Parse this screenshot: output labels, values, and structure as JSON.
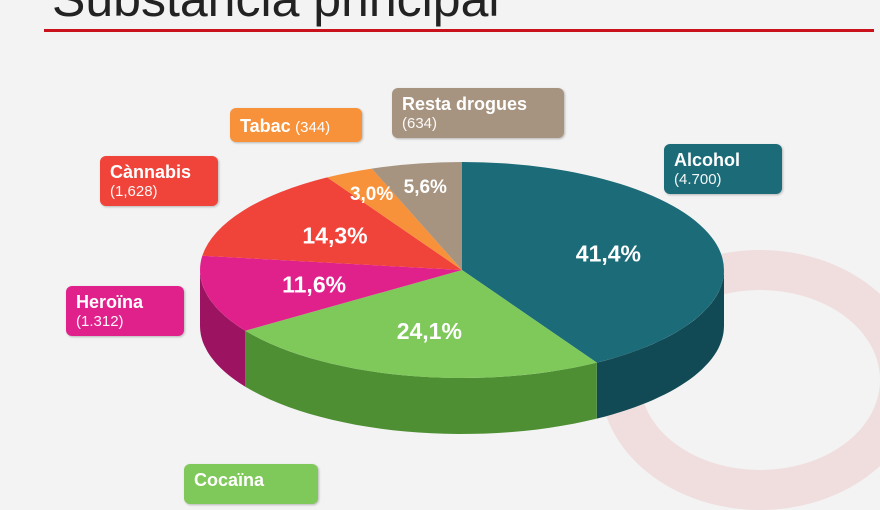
{
  "slide": {
    "title": "Substància principal",
    "accent_color": "#c9121c"
  },
  "chart_data": {
    "type": "pie",
    "title": "",
    "slices": [
      {
        "name": "Alcohol",
        "count": "(4.700)",
        "percent": 41.4,
        "label": "41,4%",
        "color": "#1b6b78",
        "side_color": "#114a54"
      },
      {
        "name": "Cocaïna",
        "count": "",
        "percent": 24.1,
        "label": "24,1%",
        "color": "#7fc85a",
        "side_color": "#4f8f34"
      },
      {
        "name": "Heroïna",
        "count": "(1.312)",
        "percent": 11.6,
        "label": "11,6%",
        "color": "#e0218c",
        "side_color": "#9c1461"
      },
      {
        "name": "Càn­nabis",
        "count": "(1,628)",
        "percent": 14.3,
        "label": "14,3%",
        "color": "#f0433a",
        "side_color": "#a82a24"
      },
      {
        "name": "Tabac",
        "count": "(344)",
        "percent": 3.0,
        "label": "3,0%",
        "color": "#f7913a",
        "side_color": "#b8621f"
      },
      {
        "name": "Resta drogues",
        "count": "(634)",
        "percent": 5.6,
        "label": "5,6%",
        "color": "#a79480",
        "side_color": "#76675a"
      }
    ]
  }
}
